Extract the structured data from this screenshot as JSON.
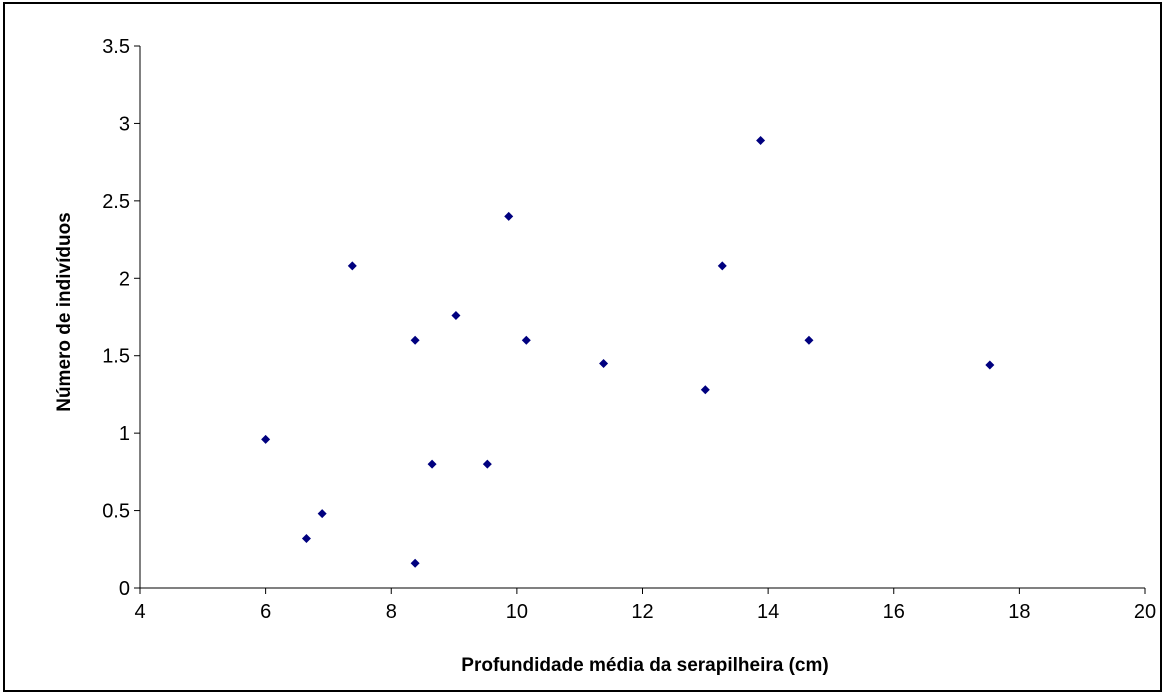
{
  "chart_data": {
    "type": "scatter",
    "title": "",
    "xlabel": "Profundidade média da serapilheira (cm)",
    "ylabel": "Número de indivíduos",
    "xlim": [
      4,
      20
    ],
    "ylim": [
      0,
      3.5
    ],
    "x_ticks": [
      4,
      6,
      8,
      10,
      12,
      14,
      16,
      18,
      20
    ],
    "y_ticks": [
      0,
      0.5,
      1,
      1.5,
      2,
      2.5,
      3,
      3.5
    ],
    "x_tick_labels": [
      "4",
      "6",
      "8",
      "10",
      "12",
      "14",
      "16",
      "18",
      "20"
    ],
    "y_tick_labels": [
      "0",
      "0.5",
      "1",
      "1.5",
      "2",
      "2.5",
      "3",
      "3.5"
    ],
    "grid": false,
    "legend": "none",
    "marker_color": "#00007f",
    "points": [
      {
        "x": 6.0,
        "y": 0.96
      },
      {
        "x": 6.65,
        "y": 0.32
      },
      {
        "x": 6.9,
        "y": 0.48
      },
      {
        "x": 7.38,
        "y": 2.08
      },
      {
        "x": 8.38,
        "y": 0.16
      },
      {
        "x": 8.38,
        "y": 1.6
      },
      {
        "x": 8.65,
        "y": 0.8
      },
      {
        "x": 9.03,
        "y": 1.76
      },
      {
        "x": 9.53,
        "y": 0.8
      },
      {
        "x": 9.87,
        "y": 2.4
      },
      {
        "x": 10.15,
        "y": 1.6
      },
      {
        "x": 11.38,
        "y": 1.45
      },
      {
        "x": 13.0,
        "y": 1.28
      },
      {
        "x": 13.27,
        "y": 2.08
      },
      {
        "x": 13.88,
        "y": 2.89
      },
      {
        "x": 14.65,
        "y": 1.6
      },
      {
        "x": 17.53,
        "y": 1.44
      }
    ]
  }
}
